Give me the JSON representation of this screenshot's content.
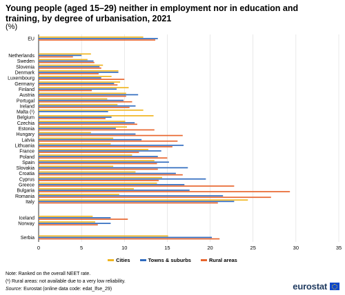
{
  "header": {
    "title": "Young people (aged 15–29) neither in employment nor in education and training, by degree of urbanisation, 2021",
    "unit": "(%)"
  },
  "legend": {
    "cities": "Cities",
    "towns": "Towns & suburbs",
    "rural": "Rural areas"
  },
  "footer": {
    "note1": "Note: Ranked on the overall NEET rate.",
    "note2": "(¹) Rural areas: not available due to a very low reliability.",
    "source_prefix": "Source:",
    "source_text": " Eurostat (online data code: edat_lfse_29)",
    "logo": "eurostat"
  },
  "colors": {
    "cities": "#f0b51e",
    "towns": "#2f6bbf",
    "rural": "#e8652d"
  },
  "chart_data": {
    "type": "bar",
    "orientation": "horizontal",
    "xlim": [
      0,
      35
    ],
    "xticks": [
      0,
      5,
      10,
      15,
      20,
      25,
      30,
      35
    ],
    "groups": [
      {
        "label": "EU",
        "cities": 12.2,
        "towns": 13.9,
        "rural": 13.6
      },
      {
        "label": "Netherlands",
        "cities": 6.1,
        "towns": 5.0,
        "rural": 4.0
      },
      {
        "label": "Sweden",
        "cities": 5.7,
        "towns": 6.4,
        "rural": 6.5
      },
      {
        "label": "Slovenia",
        "cities": 7.5,
        "towns": 7.1,
        "rural": 7.3
      },
      {
        "label": "Denmark",
        "cities": 9.3,
        "towns": 9.3,
        "rural": 7.0
      },
      {
        "label": "Luxembourg",
        "cities": 8.5,
        "towns": 7.3,
        "rural": 10.0
      },
      {
        "label": "Germany",
        "cities": 9.5,
        "towns": 8.8,
        "rural": 9.2
      },
      {
        "label": "Finland",
        "cities": 10.5,
        "towns": 9.1,
        "rural": 6.2
      },
      {
        "label": "Austria",
        "cities": 10.2,
        "towns": 11.6,
        "rural": 10.2
      },
      {
        "label": "Portugal",
        "cities": 8.0,
        "towns": 9.9,
        "rural": 10.9
      },
      {
        "label": "Ireland",
        "cities": 9.2,
        "towns": 11.3,
        "rural": 10.6
      },
      {
        "label": "Malta (¹)",
        "cities": 12.2,
        "towns": 8.1,
        "rural": null
      },
      {
        "label": "Belgium",
        "cities": 13.4,
        "towns": 8.5,
        "rural": 7.8
      },
      {
        "label": "Czechia",
        "cities": 10.1,
        "towns": 11.2,
        "rural": 11.5
      },
      {
        "label": "Estonia",
        "cities": 10.3,
        "towns": 9.0,
        "rural": 13.5
      },
      {
        "label": "Hungary",
        "cities": 6.1,
        "towns": 11.3,
        "rural": 16.8
      },
      {
        "label": "Latvia",
        "cities": 8.7,
        "towns": 12.0,
        "rural": 16.2
      },
      {
        "label": "Lithuania",
        "cities": 8.4,
        "towns": 16.9,
        "rural": 15.6
      },
      {
        "label": "France",
        "cities": 12.8,
        "towns": 14.3,
        "rural": 11.7
      },
      {
        "label": "Poland",
        "cities": 10.9,
        "towns": 13.9,
        "rural": 15.0
      },
      {
        "label": "Spain",
        "cities": 13.5,
        "towns": 15.2,
        "rural": 13.8
      },
      {
        "label": "Slovakia",
        "cities": 8.7,
        "towns": 17.4,
        "rural": 13.9
      },
      {
        "label": "Croatia",
        "cities": 11.3,
        "towns": 16.0,
        "rural": 16.8
      },
      {
        "label": "Cyprus",
        "cities": 14.4,
        "towns": 19.5,
        "rural": 14.0
      },
      {
        "label": "Greece",
        "cities": 13.8,
        "towns": 17.0,
        "rural": 22.8
      },
      {
        "label": "Bulgaria",
        "cities": 11.1,
        "towns": 17.6,
        "rural": 29.3
      },
      {
        "label": "Romania",
        "cities": 9.4,
        "towns": 21.5,
        "rural": 27.1
      },
      {
        "label": "Italy",
        "cities": 24.4,
        "towns": 22.8,
        "rural": 20.9
      },
      {
        "label": "Iceland",
        "cities": 6.3,
        "towns": 8.4,
        "rural": 10.4
      },
      {
        "label": "Norway",
        "cities": 6.6,
        "towns": 8.4,
        "rural": 6.9
      },
      {
        "label": "Serbia",
        "cities": 15.1,
        "towns": 20.2,
        "rural": 21.1
      }
    ]
  }
}
